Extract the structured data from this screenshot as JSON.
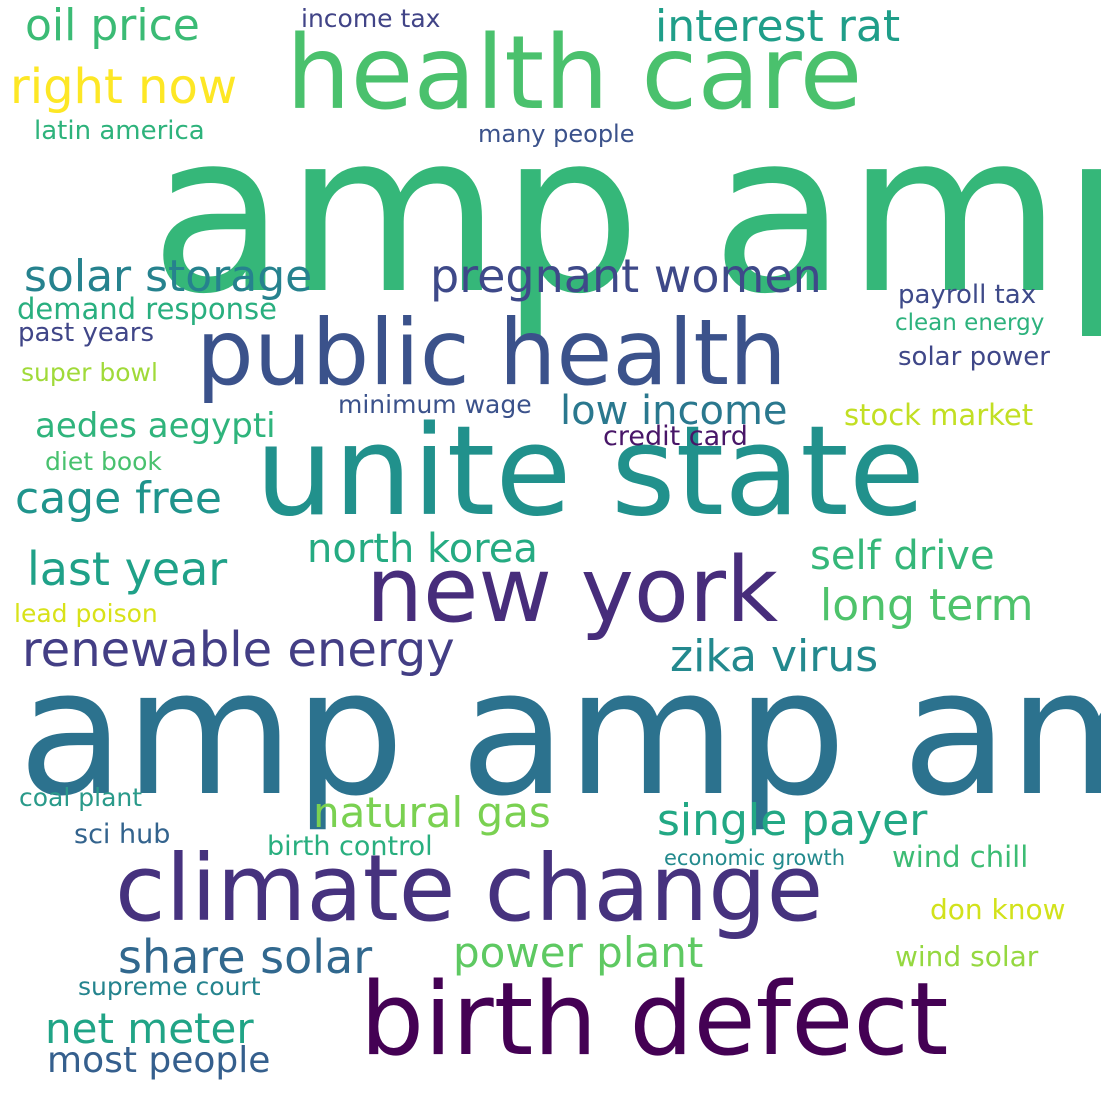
{
  "words": [
    {
      "id": "amp-amp",
      "text": "amp amp",
      "color": "#35b779"
    },
    {
      "id": "amp-amp-amp",
      "text": "amp amp amp",
      "color": "#2c728e"
    },
    {
      "id": "unite-state",
      "text": "unite state",
      "color": "#21918c"
    },
    {
      "id": "health-care",
      "text": "health care",
      "color": "#4ac16d"
    },
    {
      "id": "public-health",
      "text": "public health",
      "color": "#3b528b"
    },
    {
      "id": "climate-change",
      "text": "climate change",
      "color": "#46327e"
    },
    {
      "id": "birth-defect",
      "text": "birth defect",
      "color": "#440154"
    },
    {
      "id": "new-york",
      "text": "new york",
      "color": "#472d7b"
    },
    {
      "id": "pregnant-women",
      "text": "pregnant women",
      "color": "#3e4989"
    },
    {
      "id": "renewable-energy",
      "text": "renewable energy",
      "color": "#433e85"
    },
    {
      "id": "solar-storage",
      "text": "solar storage",
      "color": "#26828e"
    },
    {
      "id": "oil-price",
      "text": "oil price",
      "color": "#3bbb75"
    },
    {
      "id": "interest-rat",
      "text": "interest rat",
      "color": "#1f9e89"
    },
    {
      "id": "right-now",
      "text": "right now",
      "color": "#fde725"
    },
    {
      "id": "low-income",
      "text": "low income",
      "color": "#2a788e"
    },
    {
      "id": "cage-free",
      "text": "cage free",
      "color": "#1f948c"
    },
    {
      "id": "last-year",
      "text": "last year",
      "color": "#1fa188"
    },
    {
      "id": "north-korea",
      "text": "north korea",
      "color": "#25ab82"
    },
    {
      "id": "self-drive",
      "text": "self drive",
      "color": "#35b779"
    },
    {
      "id": "long-term",
      "text": "long term",
      "color": "#4ec36b"
    },
    {
      "id": "zika-virus",
      "text": "zika virus",
      "color": "#23898e"
    },
    {
      "id": "natural-gas",
      "text": "natural gas",
      "color": "#7ad151"
    },
    {
      "id": "single-payer",
      "text": "single payer",
      "color": "#22a884"
    },
    {
      "id": "share-solar",
      "text": "share solar",
      "color": "#31688e"
    },
    {
      "id": "power-plant",
      "text": "power plant",
      "color": "#5ec962"
    },
    {
      "id": "net-meter",
      "text": "net meter",
      "color": "#20a486"
    },
    {
      "id": "most-people",
      "text": "most people",
      "color": "#355f8d"
    },
    {
      "id": "aedes-aegypti",
      "text": "aedes aegypti",
      "color": "#2fb47c"
    },
    {
      "id": "demand-response",
      "text": "demand response",
      "color": "#29af7f"
    },
    {
      "id": "past-years",
      "text": "past years",
      "color": "#404688"
    },
    {
      "id": "super-bowl",
      "text": "super bowl",
      "color": "#a0da39"
    },
    {
      "id": "payroll-tax",
      "text": "payroll tax",
      "color": "#3e4a89"
    },
    {
      "id": "clean-energy",
      "text": "clean energy",
      "color": "#2db27d"
    },
    {
      "id": "solar-power",
      "text": "solar power",
      "color": "#3f4788"
    },
    {
      "id": "stock-market",
      "text": "stock market",
      "color": "#c2df23"
    },
    {
      "id": "minimum-wage",
      "text": "minimum wage",
      "color": "#3b528b"
    },
    {
      "id": "credit-card",
      "text": "credit card",
      "color": "#481668"
    },
    {
      "id": "diet-book",
      "text": "diet book",
      "color": "#48c16e"
    },
    {
      "id": "lead-poison",
      "text": "lead poison",
      "color": "#d8e219"
    },
    {
      "id": "coal-plant",
      "text": "coal plant",
      "color": "#2a9a8a"
    },
    {
      "id": "sci-hub",
      "text": "sci hub",
      "color": "#33638d"
    },
    {
      "id": "birth-control",
      "text": "birth control",
      "color": "#29af7f"
    },
    {
      "id": "economic-growth",
      "text": "economic growth",
      "color": "#238a8d"
    },
    {
      "id": "wind-chill",
      "text": "wind chill",
      "color": "#3dbc74"
    },
    {
      "id": "don-know",
      "text": "don know",
      "color": "#d2e21b"
    },
    {
      "id": "wind-solar",
      "text": "wind solar",
      "color": "#95d840"
    },
    {
      "id": "supreme-court",
      "text": "supreme court",
      "color": "#25848e"
    },
    {
      "id": "latin-america",
      "text": "latin america",
      "color": "#2eb37c"
    },
    {
      "id": "income-tax",
      "text": "income tax",
      "color": "#414487"
    },
    {
      "id": "many-people",
      "text": "many people",
      "color": "#3b528b"
    }
  ]
}
